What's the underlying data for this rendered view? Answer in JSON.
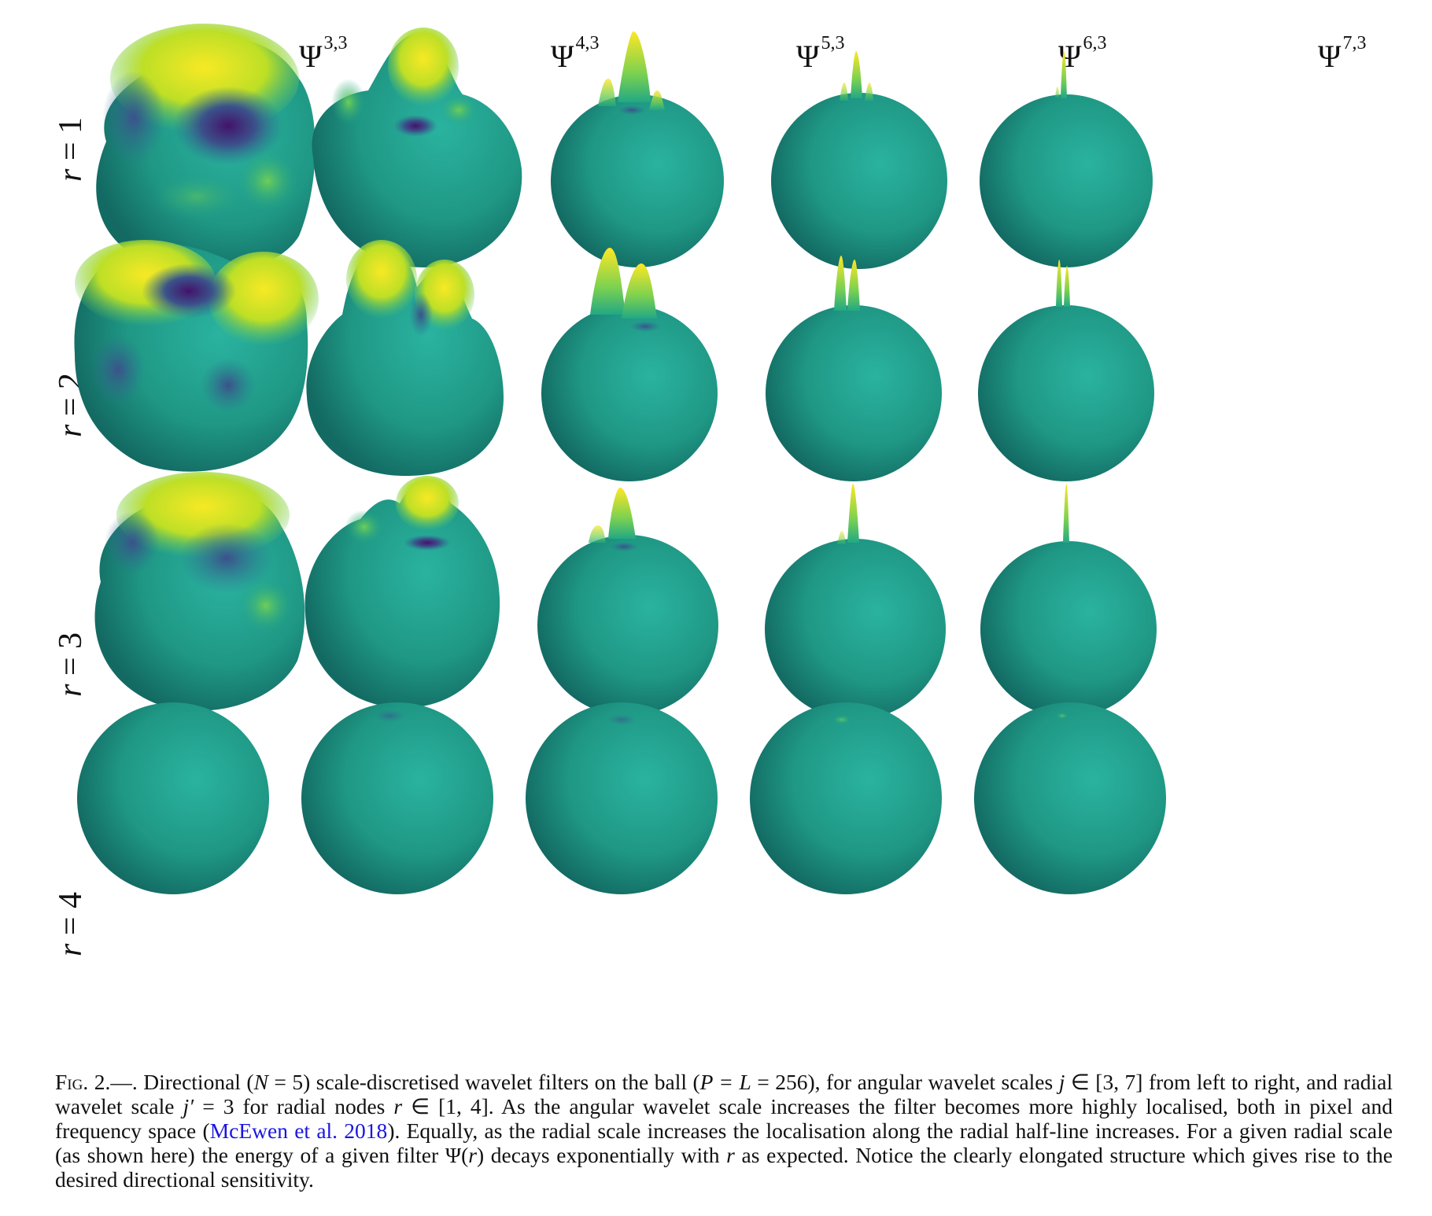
{
  "figure": {
    "column_headers": [
      {
        "base": "Ψ",
        "sup": "3,3"
      },
      {
        "base": "Ψ",
        "sup": "4,3"
      },
      {
        "base": "Ψ",
        "sup": "5,3"
      },
      {
        "base": "Ψ",
        "sup": "6,3"
      },
      {
        "base": "Ψ",
        "sup": "7,3"
      }
    ],
    "row_labels": [
      {
        "var": "r",
        "rest": " = 1"
      },
      {
        "var": "r",
        "rest": " = 2"
      },
      {
        "var": "r",
        "rest": " = 3"
      },
      {
        "var": "r",
        "rest": " = 4"
      }
    ],
    "colors": {
      "base_teal": "#1f9e8c",
      "dark_teal": "#13675f",
      "yellow": "#f3e621",
      "green": "#5dc863",
      "purple": "#3b1a5e",
      "blue": "#3b528b"
    }
  },
  "caption": {
    "label": "Fig. 2.",
    "dash": "—. ",
    "part1": "Directional (",
    "m1": "N",
    "part2": " = 5) scale-discretised wavelet filters on the ball (",
    "m2": "P = L",
    "part3": " = 256), for angular wavelet scales ",
    "m3": "j",
    "part4": " ∈ [3, 7] from left to right, and radial wavelet scale ",
    "m4": "j′",
    "part5": " = 3 for radial nodes ",
    "m5": "r",
    "part6": " ∈ [1, 4]. As the angular wavelet scale increases the filter becomes more highly localised, both in pixel and frequency space (",
    "link": "McEwen et al. 2018",
    "part7": "). Equally, as the radial scale increases the localisation along the radial half-line increases. For a given radial scale (as shown here) the energy of a given filter Ψ(",
    "m6": "r",
    "part8": ") decays exponentially with ",
    "m7": "r",
    "part9": " as expected. Notice the clearly elongated structure which gives rise to the desired directional sensitivity."
  }
}
